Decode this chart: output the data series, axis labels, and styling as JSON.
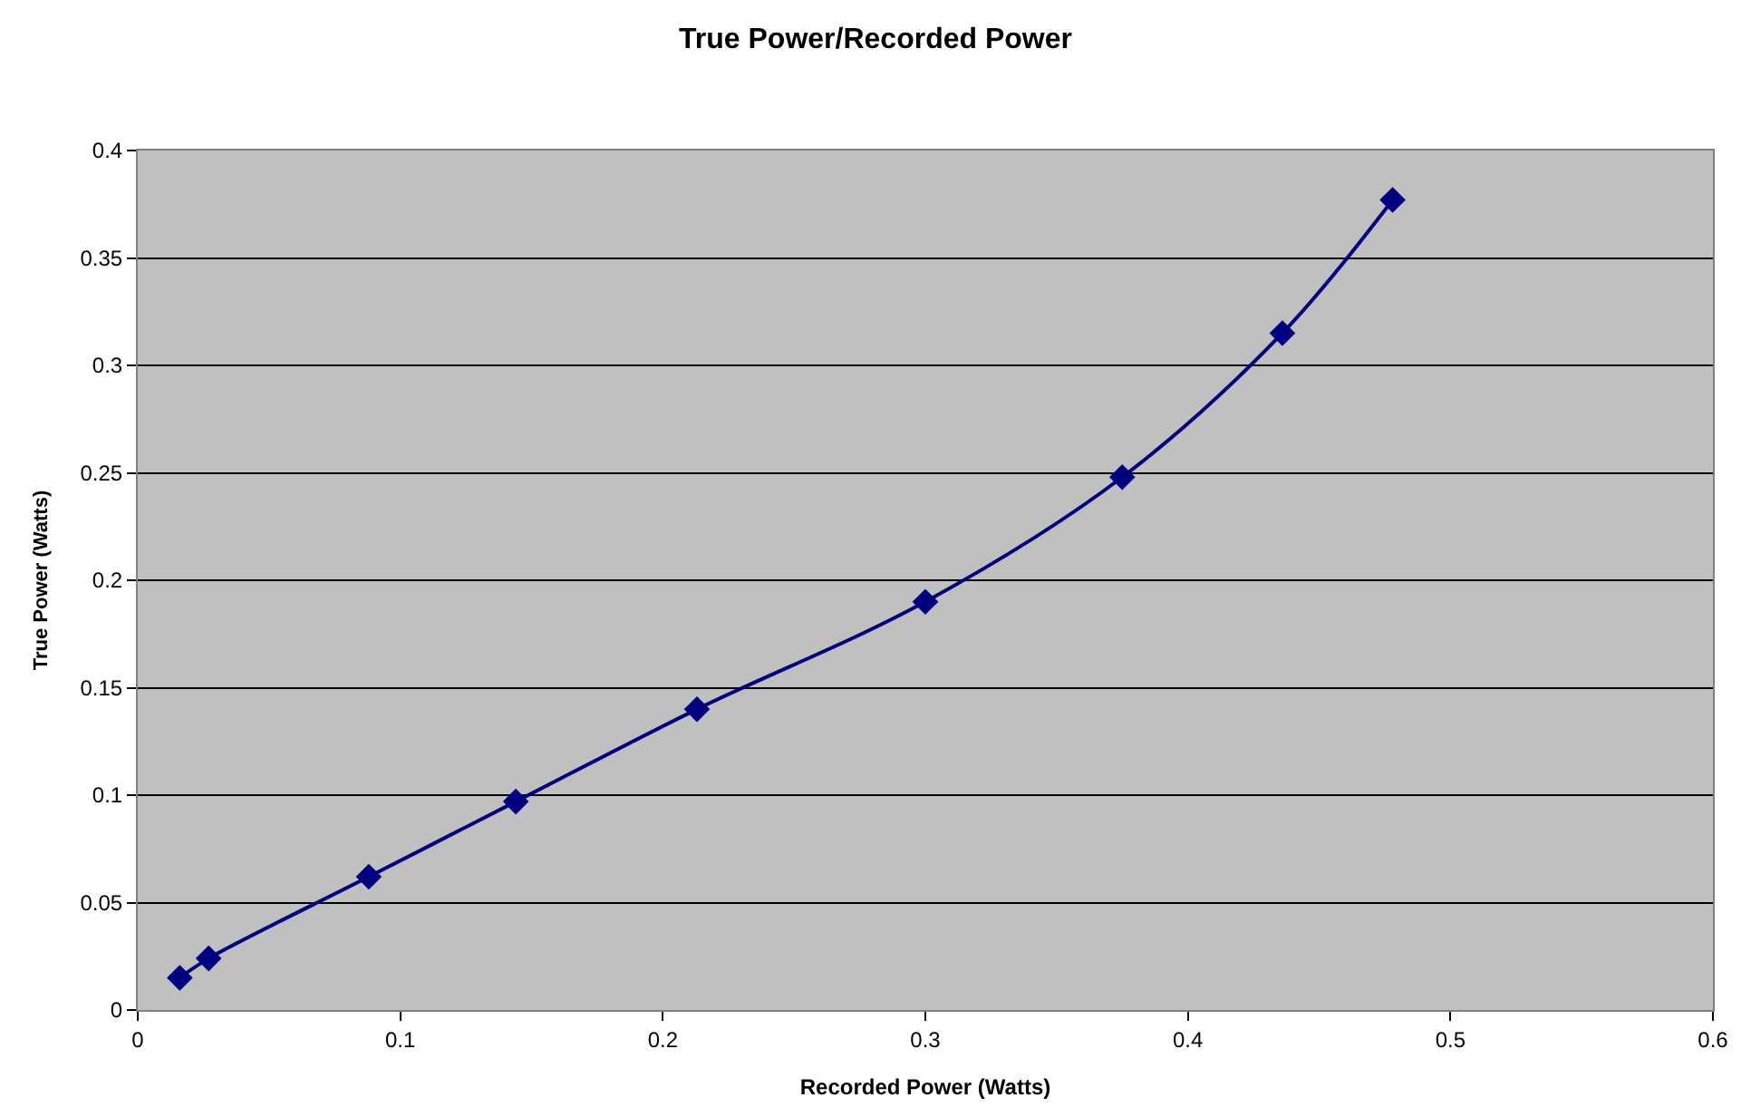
{
  "chart_data": {
    "type": "line",
    "title": "True Power/Recorded Power",
    "xlabel": "Recorded Power (Watts)",
    "ylabel": "True Power (Watts)",
    "x": [
      0.016,
      0.027,
      0.088,
      0.144,
      0.213,
      0.3,
      0.375,
      0.436,
      0.478
    ],
    "series": [
      {
        "color": "#000080",
        "values": [
          0.015,
          0.024,
          0.062,
          0.097,
          0.14,
          0.19,
          0.248,
          0.315,
          0.377
        ]
      }
    ],
    "xlim": [
      0,
      0.6
    ],
    "xticks": [
      0,
      0.1,
      0.2,
      0.3,
      0.4,
      0.5,
      0.6
    ],
    "ylim": [
      0,
      0.4
    ],
    "yticks": [
      0,
      0.05,
      0.1,
      0.15,
      0.2,
      0.25,
      0.3,
      0.35,
      0.4
    ],
    "grid": "y",
    "legend": false,
    "marker": "diamond",
    "line_style": "solid"
  }
}
